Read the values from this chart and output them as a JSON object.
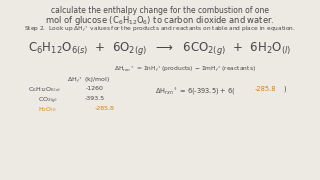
{
  "bg_color": "#ede9e3",
  "text_color": "#484848",
  "orange_color": "#d4820a",
  "title1": "calculate the enthalpy change for the combustion of one",
  "title2": "mol of glucose (C$_6$H$_{12}$O$_6$) to carbon dioxide and water.",
  "step": "Step 2.  Look up $\\Delta$H$_f$$^\\circ$ values for the products and reactants on table and place in equation.",
  "chem_eq": "C$_6$H$_{12}$O$_{6(s)}$  +  6O$_{2(g)}$  $\\longrightarrow$  6CO$_{2(g)}$  +  6H$_2$O$_{(l)}$",
  "delta_h_def": "$\\Delta$H$_{rxn}$$^\\circ$ = $\\Sigma$nH$_f$$^\\circ$(products) $-$ $\\Sigma$mH$_f$$^\\circ$(reactants)",
  "col_header": "$\\Delta$H$_f$$^\\circ$ (kJ/mol)",
  "r1_label": "C$_6$H$_{12}$O$_{6(s)}$",
  "r1_val": "-1260",
  "r2_label": "CO$_{2(g)}$",
  "r2_val": "-393.5",
  "r3_label": "H$_2$O$_{(l)}$",
  "r3_val": "-285.8",
  "rxn_pre": "$\\Delta$H$_{rxn}$$^\\circ$ = 6(-393.5) + 6(",
  "rxn_orange": "-285.8",
  "rxn_post": ")"
}
